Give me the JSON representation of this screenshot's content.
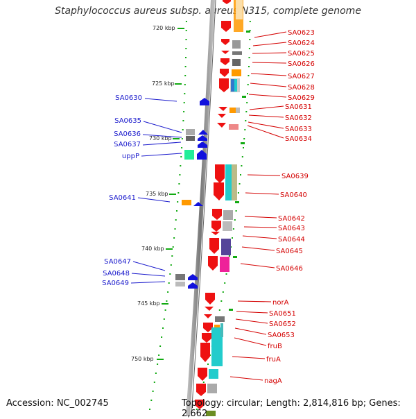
{
  "title": "Staphylococcus aureus subsp. aureus N315, complete genome",
  "footer": {
    "accession": "Accession: NC_002745",
    "topology": "Topology: circular; Length: 2,814,816 bp; Genes: 2,662"
  },
  "colors": {
    "forward_cds": "#ee1111",
    "reverse_cds": "#1111dd",
    "forward_label": "#d40000",
    "reverse_label": "#1a1acc",
    "backbone": "#888888",
    "tick": "#11aa11"
  },
  "ticks": [
    "720 kbp",
    "725 kbp",
    "730 kbp",
    "735 kbp",
    "740 kbp",
    "745 kbp",
    "750 kbp"
  ],
  "forward_genes": [
    "SA0623",
    "SA0624",
    "SA0625",
    "SA0626",
    "SA0627",
    "SA0628",
    "SA0629",
    "SA0631",
    "SA0632",
    "SA0633",
    "SA0634",
    "SA0639",
    "SA0640",
    "SA0642",
    "SA0643",
    "SA0644",
    "SA0645",
    "SA0646",
    "norA",
    "SA0651",
    "SA0652",
    "SA0653",
    "fruB",
    "fruA",
    "nagA"
  ],
  "reverse_genes": [
    "SA0630",
    "SA0635",
    "SA0636",
    "SA0637",
    "uppP",
    "SA0641",
    "SA0647",
    "SA0648",
    "SA0649"
  ]
}
